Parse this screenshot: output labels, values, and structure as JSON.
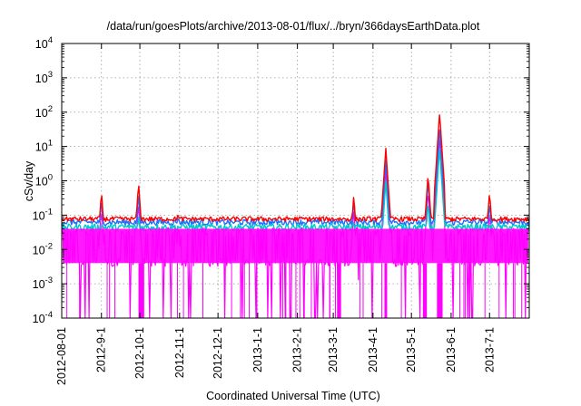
{
  "chart_data": {
    "type": "line",
    "title": "/data/run/goesPlots/archive/2013-08-01/flux/../bryn/366daysEarthData.plot",
    "xlabel": "Coordinated Universal Time (UTC)",
    "ylabel": "cSv/day",
    "yscale": "log",
    "ylim": [
      0.0001,
      10000
    ],
    "xlim": [
      "2012-08-01",
      "2013-08-01"
    ],
    "grid": true,
    "x_ticks": [
      "2012-08-01",
      "2012-9-1",
      "2012-10-1",
      "2012-11-1",
      "2012-12-1",
      "2013-1-1",
      "2013-2-1",
      "2013-3-1",
      "2013-4-1",
      "2013-5-1",
      "2013-6-1",
      "2013-7-1"
    ],
    "y_ticks": [
      {
        "value": 0.0001,
        "base": "10",
        "exp": "-4"
      },
      {
        "value": 0.001,
        "base": "10",
        "exp": "-3"
      },
      {
        "value": 0.01,
        "base": "10",
        "exp": "-2"
      },
      {
        "value": 0.1,
        "base": "10",
        "exp": "-1"
      },
      {
        "value": 1,
        "base": "10",
        "exp": "0"
      },
      {
        "value": 10,
        "base": "10",
        "exp": "1"
      },
      {
        "value": 100,
        "base": "10",
        "exp": "2"
      },
      {
        "value": 1000,
        "base": "10",
        "exp": "3"
      },
      {
        "value": 10000,
        "base": "10",
        "exp": "4"
      }
    ],
    "series": [
      {
        "color": "#ff0000",
        "baseline": 0.075,
        "band": [
          0.065,
          0.09
        ]
      },
      {
        "color": "#1e6fff",
        "baseline": 0.06,
        "band": [
          0.05,
          0.075
        ]
      },
      {
        "color": "#00c8c8",
        "baseline": 0.045,
        "band": [
          0.035,
          0.055
        ]
      },
      {
        "color": "#ff00ff",
        "baseline": 0.015,
        "band": [
          0.004,
          0.04
        ]
      }
    ],
    "events": [
      {
        "date": "2012-09-01",
        "red": 0.5,
        "blue": 0.3
      },
      {
        "date": "2012-09-30",
        "red": 0.9,
        "blue": 0.45
      },
      {
        "date": "2012-10-31",
        "red": 0.15,
        "blue": 0.12
      },
      {
        "date": "2013-03-17",
        "red": 0.4,
        "blue": 0.3
      },
      {
        "date": "2013-04-11",
        "red": 9,
        "blue": 4
      },
      {
        "date": "2013-05-14",
        "red": 1.6,
        "blue": 1.0
      },
      {
        "date": "2013-05-23",
        "red": 95,
        "blue": 35
      },
      {
        "date": "2013-07-01",
        "red": 0.5,
        "blue": 0.25
      }
    ],
    "dropouts": [
      "2012-10-01",
      "2012-10-02",
      "2012-10-03",
      "2013-03-05",
      "2013-03-06",
      "2013-04-11",
      "2013-05-11",
      "2013-05-12",
      "2013-05-22",
      "2013-05-24"
    ]
  }
}
